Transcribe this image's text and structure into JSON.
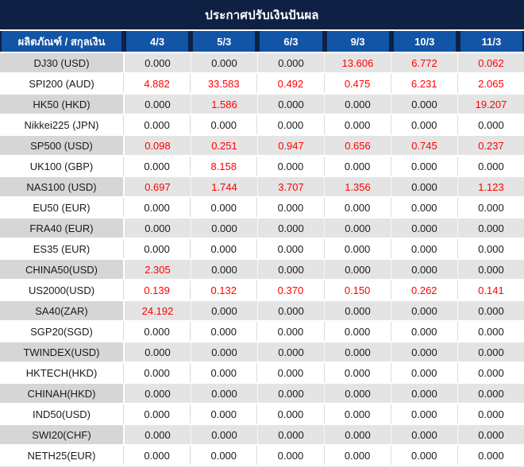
{
  "title": "ประกาศปรับเงินปันผล",
  "table": {
    "header": {
      "product_column": "ผลิตภัณฑ์ / สกุลเงิน",
      "date_columns": [
        "4/3",
        "5/3",
        "6/3",
        "9/3",
        "10/3",
        "11/3"
      ]
    },
    "rows": [
      {
        "product": "DJ30 (USD)",
        "values": [
          "0.000",
          "0.000",
          "0.000",
          "13.606",
          "6.772",
          "0.062"
        ]
      },
      {
        "product": "SPI200 (AUD)",
        "values": [
          "4.882",
          "33.583",
          "0.492",
          "0.475",
          "6.231",
          "2.065"
        ]
      },
      {
        "product": "HK50 (HKD)",
        "values": [
          "0.000",
          "1.586",
          "0.000",
          "0.000",
          "0.000",
          "19.207"
        ]
      },
      {
        "product": "Nikkei225 (JPN)",
        "values": [
          "0.000",
          "0.000",
          "0.000",
          "0.000",
          "0.000",
          "0.000"
        ]
      },
      {
        "product": "SP500 (USD)",
        "values": [
          "0.098",
          "0.251",
          "0.947",
          "0.656",
          "0.745",
          "0.237"
        ]
      },
      {
        "product": "UK100 (GBP)",
        "values": [
          "0.000",
          "8.158",
          "0.000",
          "0.000",
          "0.000",
          "0.000"
        ]
      },
      {
        "product": "NAS100 (USD)",
        "values": [
          "0.697",
          "1.744",
          "3.707",
          "1.356",
          "0.000",
          "1.123"
        ]
      },
      {
        "product": "EU50 (EUR)",
        "values": [
          "0.000",
          "0.000",
          "0.000",
          "0.000",
          "0.000",
          "0.000"
        ]
      },
      {
        "product": "FRA40 (EUR)",
        "values": [
          "0.000",
          "0.000",
          "0.000",
          "0.000",
          "0.000",
          "0.000"
        ]
      },
      {
        "product": "ES35 (EUR)",
        "values": [
          "0.000",
          "0.000",
          "0.000",
          "0.000",
          "0.000",
          "0.000"
        ]
      },
      {
        "product": "CHINA50(USD)",
        "values": [
          "2.305",
          "0.000",
          "0.000",
          "0.000",
          "0.000",
          "0.000"
        ]
      },
      {
        "product": "US2000(USD)",
        "values": [
          "0.139",
          "0.132",
          "0.370",
          "0.150",
          "0.262",
          "0.141"
        ]
      },
      {
        "product": "SA40(ZAR)",
        "values": [
          "24.192",
          "0.000",
          "0.000",
          "0.000",
          "0.000",
          "0.000"
        ]
      },
      {
        "product": "SGP20(SGD)",
        "values": [
          "0.000",
          "0.000",
          "0.000",
          "0.000",
          "0.000",
          "0.000"
        ]
      },
      {
        "product": "TWINDEX(USD)",
        "values": [
          "0.000",
          "0.000",
          "0.000",
          "0.000",
          "0.000",
          "0.000"
        ]
      },
      {
        "product": "HKTECH(HKD)",
        "values": [
          "0.000",
          "0.000",
          "0.000",
          "0.000",
          "0.000",
          "0.000"
        ]
      },
      {
        "product": "CHINAH(HKD)",
        "values": [
          "0.000",
          "0.000",
          "0.000",
          "0.000",
          "0.000",
          "0.000"
        ]
      },
      {
        "product": "IND50(USD)",
        "values": [
          "0.000",
          "0.000",
          "0.000",
          "0.000",
          "0.000",
          "0.000"
        ]
      },
      {
        "product": "SWI20(CHF)",
        "values": [
          "0.000",
          "0.000",
          "0.000",
          "0.000",
          "0.000",
          "0.000"
        ]
      },
      {
        "product": "NETH25(EUR)",
        "values": [
          "0.000",
          "0.000",
          "0.000",
          "0.000",
          "0.000",
          "0.000"
        ]
      }
    ]
  },
  "colors": {
    "title_bar_bg": "#0e2145",
    "header_bg": "#1254a6",
    "header_text": "#ffffff",
    "alt_row_label_bg": "#d6d6d6",
    "alt_row_value_bg": "#e4e4e4",
    "row_bg": "#ffffff",
    "zero_value_color": "#1a1a1a",
    "positive_value_color": "#ff0000",
    "grid_line_color": "#d9d9d9"
  }
}
